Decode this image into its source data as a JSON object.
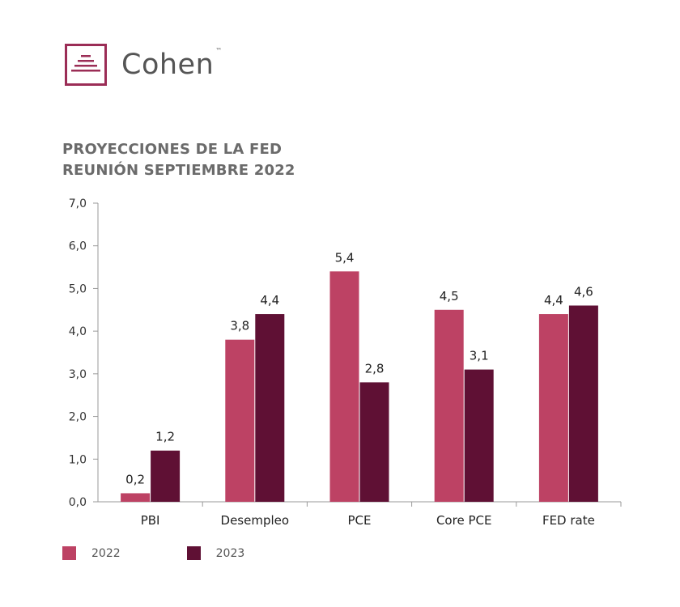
{
  "brand": {
    "name": "Cohen",
    "trademark": "™",
    "color": "#9b2d56"
  },
  "title": {
    "line1": "PROYECCIONES DE LA FED",
    "line2": "REUNIÓN SEPTIEMBRE 2022"
  },
  "chart_data": {
    "type": "bar",
    "title": "PROYECCIONES DE LA FED REUNIÓN SEPTIEMBRE 2022",
    "categories": [
      "PBI",
      "Desempleo",
      "PCE",
      "Core PCE",
      "FED rate"
    ],
    "series": [
      {
        "name": "2022",
        "values": [
          0.2,
          3.8,
          5.4,
          4.5,
          4.4
        ],
        "color": "#bd4264"
      },
      {
        "name": "2023",
        "values": [
          1.2,
          4.4,
          2.8,
          3.1,
          4.6
        ],
        "color": "#5f1034"
      }
    ],
    "value_labels": [
      [
        "0,2",
        "3,8",
        "5,4",
        "4,5",
        "4,4"
      ],
      [
        "1,2",
        "4,4",
        "2,8",
        "3,1",
        "4,6"
      ]
    ],
    "ylim": [
      0,
      7
    ],
    "yticks": [
      "0,0",
      "1,0",
      "2,0",
      "3,0",
      "4,0",
      "5,0",
      "6,0",
      "7,0"
    ],
    "xlabel": "",
    "ylabel": "",
    "grid": false,
    "legend_position": "bottom-left"
  }
}
